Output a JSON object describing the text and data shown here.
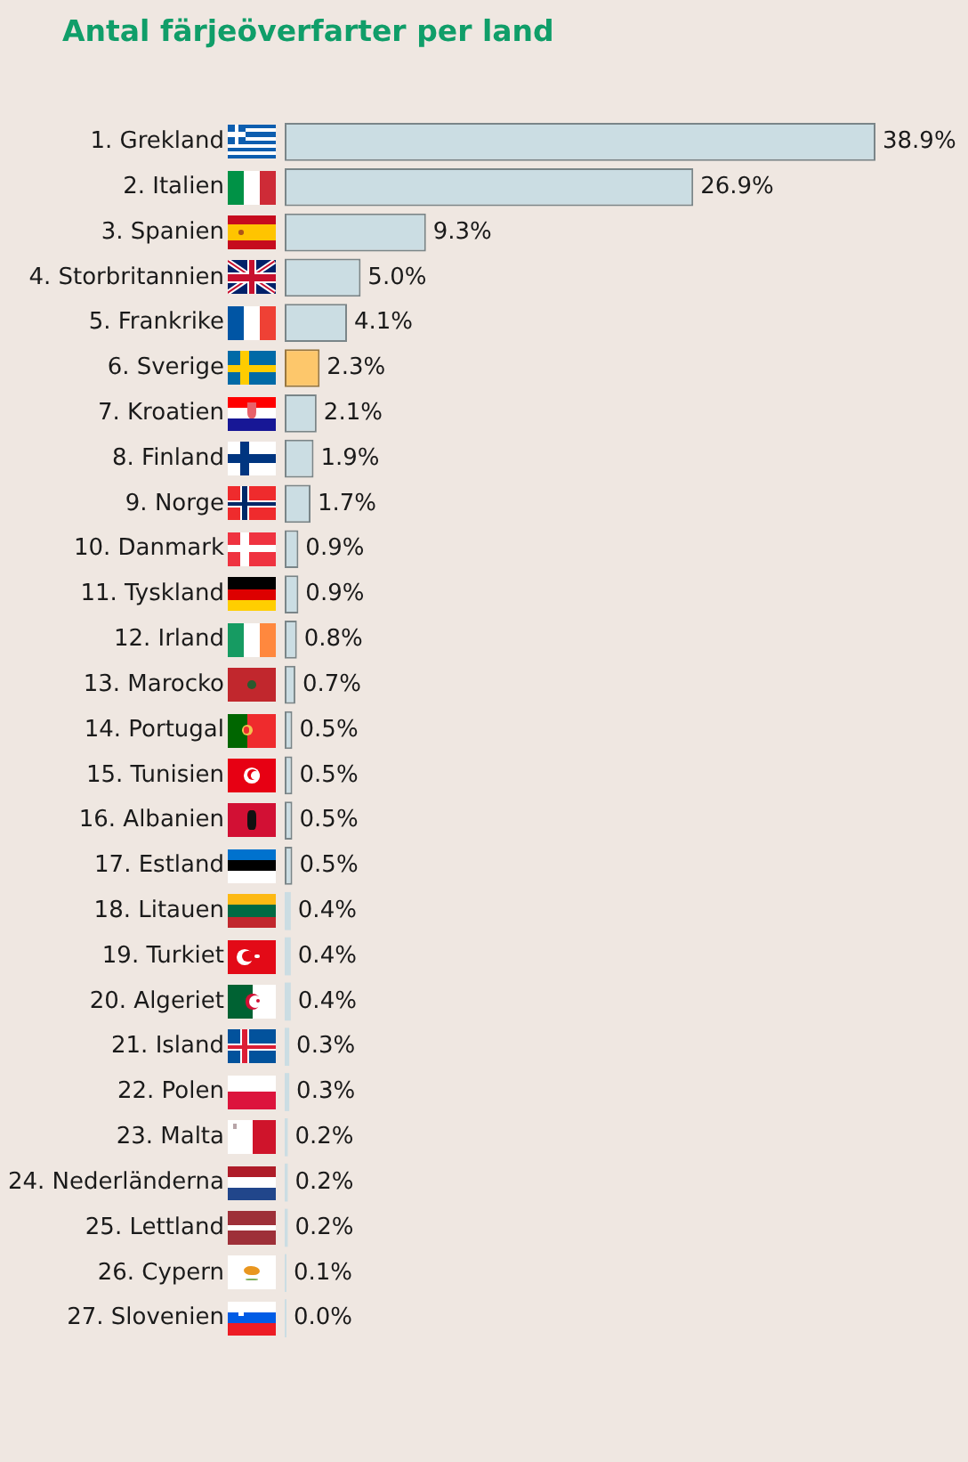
{
  "chart_data": {
    "type": "bar",
    "orientation": "horizontal",
    "title": "Antal färjeöverfarter per land",
    "categories": [
      "1. Grekland",
      "2. Italien",
      "3. Spanien",
      "4. Storbritannien",
      "5. Frankrike",
      "6. Sverige",
      "7. Kroatien",
      "8. Finland",
      "9. Norge",
      "10. Danmark",
      "11. Tyskland",
      "12. Irland",
      "13. Marocko",
      "14. Portugal",
      "15. Tunisien",
      "16. Albanien",
      "17. Estland",
      "18. Litauen",
      "19. Turkiet",
      "20. Algeriet",
      "21. Island",
      "22. Polen",
      "23. Malta",
      "24. Nederländerna",
      "25. Lettland",
      "26. Cypern",
      "27. Slovenien"
    ],
    "values": [
      38.9,
      26.9,
      9.3,
      5.0,
      4.1,
      2.3,
      2.1,
      1.9,
      1.7,
      0.9,
      0.9,
      0.8,
      0.7,
      0.5,
      0.5,
      0.5,
      0.5,
      0.4,
      0.4,
      0.4,
      0.3,
      0.3,
      0.2,
      0.2,
      0.2,
      0.1,
      0.0
    ],
    "colors": [
      "#cbdde3",
      "#cbdde3",
      "#cbdde3",
      "#cbdde3",
      "#cbdde3",
      "#fdc76b",
      "#cbdde3",
      "#cbdde3",
      "#cbdde3",
      "#cbdde3",
      "#cbdde3",
      "#cbdde3",
      "#cbdde3",
      "#cbdde3",
      "#cbdde3",
      "#cbdde3",
      "#cbdde3",
      "#cbdde3",
      "#cbdde3",
      "#cbdde3",
      "#cbdde3",
      "#cbdde3",
      "#cbdde3",
      "#cbdde3",
      "#cbdde3",
      "#cbdde3",
      "#cbdde3"
    ],
    "value_labels": [
      "38.9%",
      "26.9%",
      "9.3%",
      "5.0%",
      "4.1%",
      "2.3%",
      "2.1%",
      "1.9%",
      "1.7%",
      "0.9%",
      "0.9%",
      "0.8%",
      "0.7%",
      "0.5%",
      "0.5%",
      "0.5%",
      "0.5%",
      "0.4%",
      "0.4%",
      "0.4%",
      "0.3%",
      "0.3%",
      "0.2%",
      "0.2%",
      "0.2%",
      "0.1%",
      "0.0%"
    ]
  }
}
